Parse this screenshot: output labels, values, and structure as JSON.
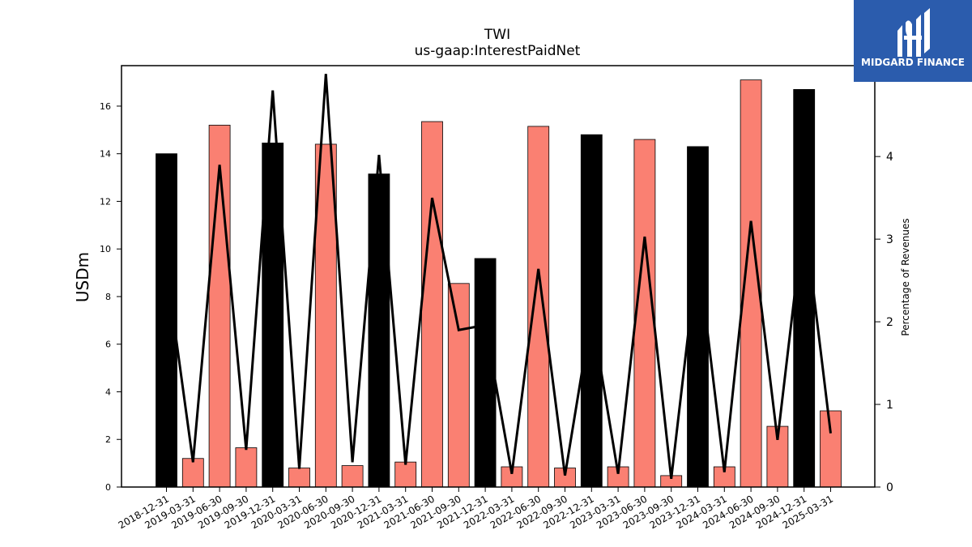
{
  "chart_data": {
    "type": "bar",
    "title": "TWI",
    "subtitle": "us-gaap:InterestPaidNet",
    "ylabel": "USDm",
    "y2label": "Percentage of Revenues",
    "ylim": [
      0,
      17.7
    ],
    "y2lim": [
      0,
      5.1
    ],
    "yticks": [
      0,
      2,
      4,
      6,
      8,
      10,
      12,
      14,
      16
    ],
    "y2ticks": [
      0,
      1,
      2,
      3,
      4,
      5
    ],
    "grid": false,
    "categories": [
      "2018-12-31",
      "2019-03-31",
      "2019-06-30",
      "2019-09-30",
      "2019-12-31",
      "2020-03-31",
      "2020-06-30",
      "2020-09-30",
      "2020-12-31",
      "2021-03-31",
      "2021-06-30",
      "2021-09-30",
      "2021-12-31",
      "2022-03-31",
      "2022-06-30",
      "2022-09-30",
      "2022-12-31",
      "2023-03-31",
      "2023-06-30",
      "2023-09-30",
      "2023-12-31",
      "2024-03-31",
      "2024-06-30",
      "2024-09-30",
      "2024-12-31",
      "2025-03-31"
    ],
    "series": [
      {
        "kind": "bar",
        "values": [
          14.0,
          1.2,
          15.2,
          1.65,
          14.45,
          0.8,
          14.4,
          0.9,
          13.15,
          1.05,
          15.35,
          8.55,
          9.6,
          0.85,
          15.15,
          0.8,
          14.8,
          0.85,
          14.6,
          0.48,
          14.3,
          0.85,
          17.1,
          2.55,
          16.7,
          3.2
        ],
        "colors": [
          "#000000",
          "#fa8072",
          "#fa8072",
          "#fa8072",
          "#000000",
          "#fa8072",
          "#fa8072",
          "#fa8072",
          "#000000",
          "#fa8072",
          "#fa8072",
          "#fa8072",
          "#000000",
          "#fa8072",
          "#fa8072",
          "#fa8072",
          "#000000",
          "#fa8072",
          "#fa8072",
          "#fa8072",
          "#000000",
          "#fa8072",
          "#fa8072",
          "#fa8072",
          "#000000",
          "#fa8072"
        ]
      },
      {
        "kind": "line",
        "axis": "right",
        "color": "#000000",
        "points": [
          {
            "x": "2018-12-31",
            "y": 2.65
          },
          {
            "x": "2019-03-31",
            "y": 0.3
          },
          {
            "x": "2019-06-30",
            "y": 3.9
          },
          {
            "x": "2019-09-30",
            "y": 0.45
          },
          {
            "x": "2019-12-31",
            "y": 4.8
          },
          {
            "x": "2020-03-31",
            "y": 0.22
          },
          {
            "x": "2020-06-30",
            "y": 5.0
          },
          {
            "x": "2020-09-30",
            "y": 0.3
          },
          {
            "x": "2020-12-31",
            "y": 4.02
          },
          {
            "x": "2021-03-31",
            "y": 0.27
          },
          {
            "x": "2021-06-30",
            "y": 3.5
          },
          {
            "x": "2021-09-30",
            "y": 1.9
          },
          {
            "x": "2021-12-31",
            "y": 1.96
          },
          {
            "x": "2022-03-31",
            "y": 0.16
          },
          {
            "x": "2022-06-30",
            "y": 2.64
          },
          {
            "x": "2022-09-30",
            "y": 0.14
          },
          {
            "x": "2022-12-31",
            "y": 2.1
          },
          {
            "x": "2023-03-31",
            "y": 0.16
          },
          {
            "x": "2023-06-30",
            "y": 3.03
          },
          {
            "x": "2023-09-30",
            "y": 0.1
          },
          {
            "x": "2023-12-31",
            "y": 2.85
          },
          {
            "x": "2024-03-31",
            "y": 0.18
          },
          {
            "x": "2024-06-30",
            "y": 3.22
          },
          {
            "x": "2024-09-30",
            "y": 0.57
          },
          {
            "x": "2024-12-31",
            "y": 3.3
          },
          {
            "x": "2025-03-31",
            "y": 0.65
          }
        ]
      }
    ]
  },
  "logo": {
    "text": "MIDGARD FINANCE",
    "background": "#2b5cad"
  }
}
